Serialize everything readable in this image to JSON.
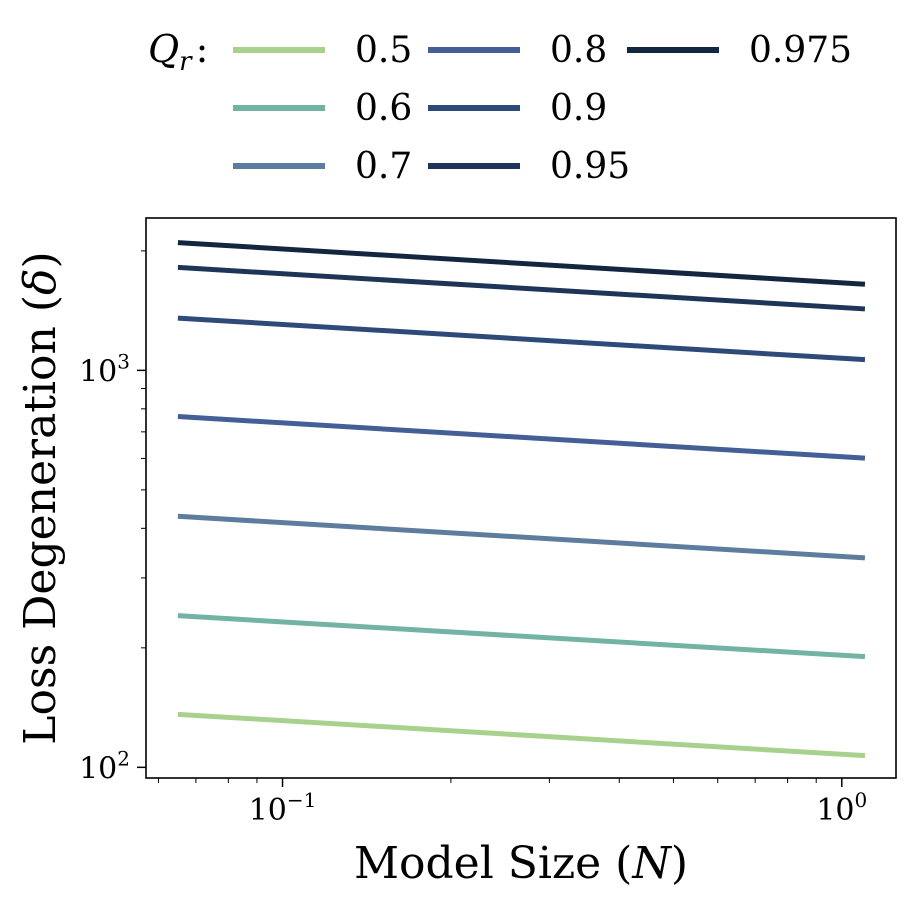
{
  "chart_data": {
    "type": "line",
    "x_scale": "log",
    "y_scale": "log",
    "xlabel": "Model Size (N)",
    "xlabel_parts": {
      "prefix": "Model Size (",
      "var": "N",
      "suffix": ")"
    },
    "ylabel": "Loss Degeneration (δ)",
    "ylabel_parts": {
      "prefix": "Loss Degeneration (",
      "var": "δ",
      "suffix": ")"
    },
    "xlim": [
      0.057,
      1.25
    ],
    "ylim": [
      94,
      2420
    ],
    "x_ticks": [
      {
        "value": 0.1,
        "base": "10",
        "exp": "−1"
      },
      {
        "value": 1,
        "base": "10",
        "exp": "0"
      }
    ],
    "y_ticks": [
      {
        "value": 100,
        "base": "10",
        "exp": "2"
      },
      {
        "value": 1000,
        "base": "10",
        "exp": "3"
      }
    ],
    "grid": false,
    "legend": {
      "title_var": "Q",
      "title_sub": "r",
      "title_suffix": ":",
      "placement": "top, outside plot",
      "columns": 3
    },
    "series": [
      {
        "name": "0.5",
        "color": "#a9d18e",
        "x": [
          0.065,
          1.1
        ],
        "y": [
          136,
          107
        ]
      },
      {
        "name": "0.6",
        "color": "#73b3a3",
        "x": [
          0.065,
          1.1
        ],
        "y": [
          241,
          190
        ]
      },
      {
        "name": "0.7",
        "color": "#5e7d9e",
        "x": [
          0.065,
          1.1
        ],
        "y": [
          429,
          337
        ]
      },
      {
        "name": "0.8",
        "color": "#435f96",
        "x": [
          0.065,
          1.1
        ],
        "y": [
          765,
          601
        ]
      },
      {
        "name": "0.9",
        "color": "#2d4a78",
        "x": [
          0.065,
          1.1
        ],
        "y": [
          1354,
          1064
        ]
      },
      {
        "name": "0.95",
        "color": "#1f3558",
        "x": [
          0.065,
          1.1
        ],
        "y": [
          1817,
          1428
        ]
      },
      {
        "name": "0.975",
        "color": "#132640",
        "x": [
          0.065,
          1.1
        ],
        "y": [
          2098,
          1648
        ]
      }
    ]
  }
}
